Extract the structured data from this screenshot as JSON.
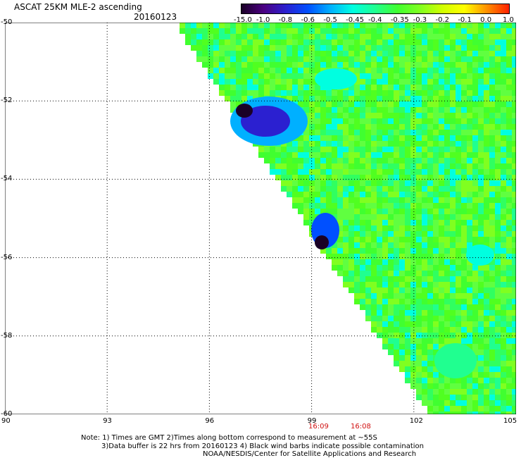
{
  "header": {
    "title": "ASCAT 25KM MLE-2 ascending",
    "date": "20160123"
  },
  "colorbar": {
    "labels": [
      "-15.0",
      "-1.0",
      "-0.8",
      "-0.6",
      "-0.5",
      "-0.45",
      "-0.4",
      "-0.35",
      "-0.3",
      "-0.2",
      "-0.1",
      "0.0",
      "1.0"
    ],
    "colors": [
      "#1a0026",
      "#4b0082",
      "#2b20d0",
      "#0050ff",
      "#00b0ff",
      "#00ffe0",
      "#20ff90",
      "#40ff30",
      "#80ff20",
      "#d0ff00",
      "#ffff00",
      "#ff9000",
      "#ff2000"
    ]
  },
  "map": {
    "lat_labels": [
      "-50",
      "-52",
      "-54",
      "-56",
      "-58",
      "-60"
    ],
    "lon_labels": [
      "90",
      "93",
      "96",
      "99",
      "102",
      "105"
    ],
    "time_labels": [
      "16:09",
      "16:08"
    ]
  },
  "notes": {
    "line1": "Note: 1) Times are GMT 2)Times along bottom correspond to measurement at ~55S",
    "line2": "3)Data buffer is 22 hrs from 20160123 4) Black wind barbs indicate possible contamination",
    "line3": "NOAA/NESDIS/Center for Satellite Applications and Research"
  }
}
